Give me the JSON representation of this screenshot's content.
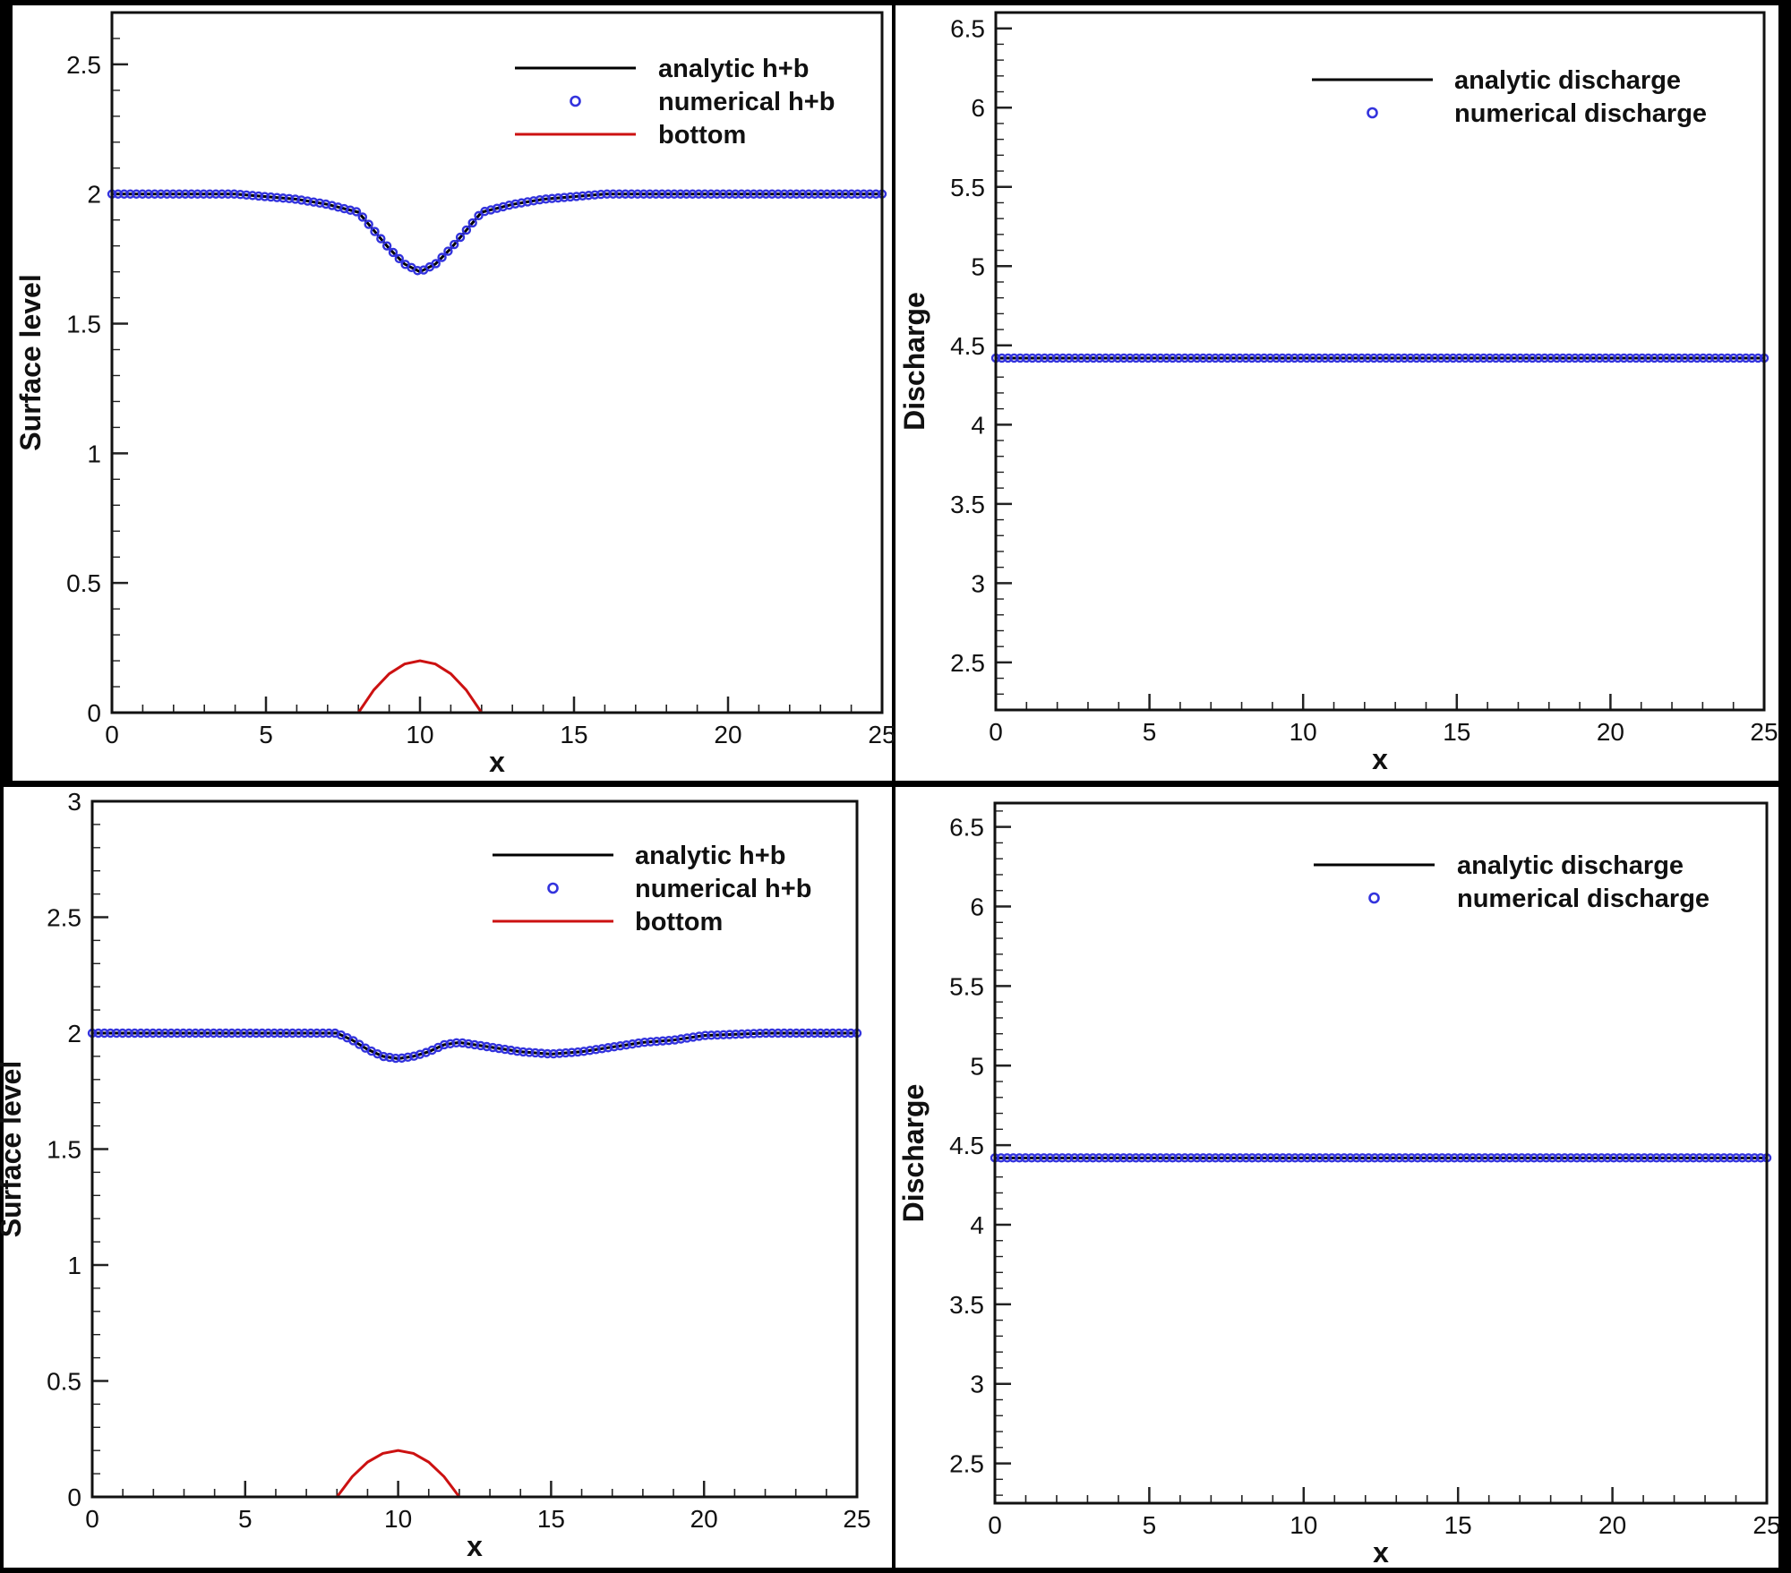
{
  "chart_data": [
    {
      "type": "line",
      "panel": "top-left",
      "xlabel": "x",
      "ylabel": "Surface level",
      "xlim": [
        0,
        25
      ],
      "ylim": [
        0,
        2.7
      ],
      "xticks": [
        "0",
        "5",
        "10",
        "15",
        "20",
        "25"
      ],
      "yticks": [
        "0",
        "0.5",
        "1",
        "1.5",
        "2",
        "2.5"
      ],
      "legend_position": "top-right",
      "series": [
        {
          "name": "analytic h+b",
          "style": "line",
          "color": "#000000",
          "x": [
            0,
            2,
            4,
            5,
            6,
            7,
            8,
            8.5,
            9,
            9.5,
            10,
            10.5,
            11,
            11.5,
            12,
            13,
            14,
            15,
            16,
            18,
            20,
            25
          ],
          "y": [
            2.0,
            2.0,
            2.0,
            1.99,
            1.98,
            1.96,
            1.93,
            1.86,
            1.79,
            1.73,
            1.7,
            1.73,
            1.79,
            1.86,
            1.93,
            1.96,
            1.98,
            1.99,
            2.0,
            2.0,
            2.0,
            2.0
          ]
        },
        {
          "name": "numerical h+b",
          "style": "markers",
          "color": "#3333dd",
          "x": [
            0,
            2,
            4,
            5,
            6,
            7,
            8,
            8.5,
            9,
            9.5,
            10,
            10.5,
            11,
            11.5,
            12,
            13,
            14,
            15,
            16,
            18,
            20,
            25
          ],
          "y": [
            2.0,
            2.0,
            2.0,
            1.99,
            1.98,
            1.96,
            1.93,
            1.86,
            1.79,
            1.73,
            1.7,
            1.73,
            1.79,
            1.86,
            1.93,
            1.96,
            1.98,
            1.99,
            2.0,
            2.0,
            2.0,
            2.0
          ]
        },
        {
          "name": "bottom",
          "style": "line",
          "color": "#cc1111",
          "x": [
            8,
            8.5,
            9,
            9.5,
            10,
            10.5,
            11,
            11.5,
            12
          ],
          "y": [
            0.0,
            0.0875,
            0.15,
            0.1875,
            0.2,
            0.1875,
            0.15,
            0.0875,
            0.0
          ]
        }
      ]
    },
    {
      "type": "line",
      "panel": "top-right",
      "xlabel": "x",
      "ylabel": "Discharge",
      "xlim": [
        0,
        25
      ],
      "ylim": [
        2.2,
        6.6
      ],
      "xticks": [
        "0",
        "5",
        "10",
        "15",
        "20",
        "25"
      ],
      "yticks": [
        "2.5",
        "3",
        "3.5",
        "4",
        "4.5",
        "5",
        "5.5",
        "6",
        "6.5"
      ],
      "legend_position": "top-right",
      "series": [
        {
          "name": "analytic discharge",
          "style": "line",
          "color": "#000000",
          "x": [
            0,
            25
          ],
          "y": [
            4.42,
            4.42
          ]
        },
        {
          "name": "numerical discharge",
          "style": "markers",
          "color": "#3333dd",
          "x": [
            0,
            25
          ],
          "y": [
            4.42,
            4.42
          ]
        }
      ]
    },
    {
      "type": "line",
      "panel": "bottom-left",
      "xlabel": "x",
      "ylabel": "Surface level",
      "xlim": [
        0,
        25
      ],
      "ylim": [
        0,
        3
      ],
      "xticks": [
        "0",
        "5",
        "10",
        "15",
        "20",
        "25"
      ],
      "yticks": [
        "0",
        "0.5",
        "1",
        "1.5",
        "2",
        "2.5",
        "3"
      ],
      "legend_position": "top-right",
      "series": [
        {
          "name": "analytic h+b",
          "style": "line",
          "color": "#000000",
          "x": [
            0,
            4,
            8,
            8.5,
            9,
            9.5,
            10,
            10.5,
            11,
            11.5,
            12,
            13,
            14,
            15,
            16,
            17,
            18,
            19,
            20,
            22,
            25
          ],
          "y": [
            2.0,
            2.0,
            2.0,
            1.97,
            1.93,
            1.9,
            1.89,
            1.9,
            1.92,
            1.95,
            1.96,
            1.94,
            1.92,
            1.91,
            1.92,
            1.94,
            1.96,
            1.97,
            1.99,
            2.0,
            2.0
          ]
        },
        {
          "name": "numerical h+b",
          "style": "markers",
          "color": "#3333dd",
          "x": [
            0,
            4,
            8,
            8.5,
            9,
            9.5,
            10,
            10.5,
            11,
            11.5,
            12,
            13,
            14,
            15,
            16,
            17,
            18,
            19,
            20,
            22,
            25
          ],
          "y": [
            2.0,
            2.0,
            2.0,
            1.97,
            1.93,
            1.9,
            1.89,
            1.9,
            1.92,
            1.95,
            1.96,
            1.94,
            1.92,
            1.91,
            1.92,
            1.94,
            1.96,
            1.97,
            1.99,
            2.0,
            2.0
          ]
        },
        {
          "name": "bottom",
          "style": "line",
          "color": "#cc1111",
          "x": [
            8,
            8.5,
            9,
            9.5,
            10,
            10.5,
            11,
            11.5,
            12
          ],
          "y": [
            0.0,
            0.0875,
            0.15,
            0.1875,
            0.2,
            0.1875,
            0.15,
            0.0875,
            0.0
          ]
        }
      ]
    },
    {
      "type": "line",
      "panel": "bottom-right",
      "xlabel": "x",
      "ylabel": "Discharge",
      "xlim": [
        0,
        25
      ],
      "ylim": [
        2.25,
        6.65
      ],
      "xticks": [
        "0",
        "5",
        "10",
        "15",
        "20",
        "25"
      ],
      "yticks": [
        "2.5",
        "3",
        "3.5",
        "4",
        "4.5",
        "5",
        "5.5",
        "6",
        "6.5"
      ],
      "legend_position": "top-right",
      "series": [
        {
          "name": "analytic discharge",
          "style": "line",
          "color": "#000000",
          "x": [
            0,
            25
          ],
          "y": [
            4.42,
            4.42
          ]
        },
        {
          "name": "numerical discharge",
          "style": "markers",
          "color": "#3333dd",
          "x": [
            0,
            25
          ],
          "y": [
            4.42,
            4.42
          ]
        }
      ]
    }
  ]
}
